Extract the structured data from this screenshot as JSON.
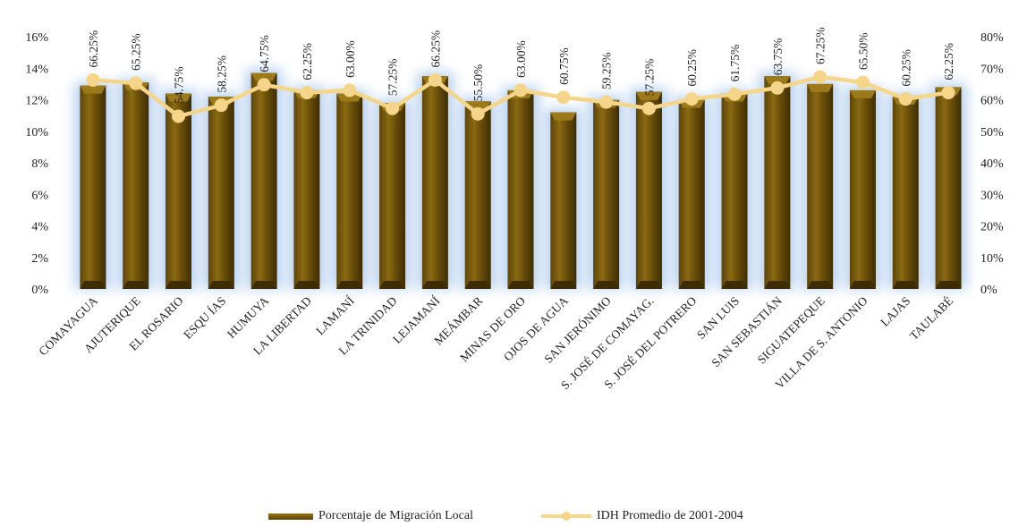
{
  "chart_data": {
    "type": "bar",
    "categories": [
      "COMAYAGUA",
      "AJUTERIQUE",
      "EL ROSARIO",
      "ESQU ÍAS",
      "HUMUYA",
      "LA LIBERTAD",
      "LAMANÍ",
      "LA TRINIDAD",
      "LEJAMANÍ",
      "MEÁMBAR",
      "MINAS DE ORO",
      "OJOS DE AGUA",
      "SAN JERÓNIMO",
      "S. JOSÉ DE COMAYAG.",
      "S. JOSÉ DEL POTRERO",
      "SAN LUIS",
      "SAN SEBASTIÁN",
      "SIGUATEPEQUE",
      "VILLA DE S. ANTONIO",
      "LAJAS",
      "TAULABÉ"
    ],
    "series": [
      {
        "name": "Porcentaje de Migración Local",
        "type": "bar",
        "axis": "left",
        "color": "#7a5c0e",
        "values": [
          12.9,
          13.1,
          12.4,
          12.2,
          13.7,
          12.6,
          12.4,
          11.8,
          13.5,
          11.9,
          12.6,
          11.2,
          12.0,
          12.5,
          12.0,
          12.4,
          13.5,
          13.0,
          12.6,
          12.2,
          12.8
        ]
      },
      {
        "name": "IDH Promedio de 2001-2004",
        "type": "line",
        "axis": "right",
        "color": "#f5d58a",
        "values": [
          66.25,
          65.25,
          54.75,
          58.25,
          64.75,
          62.25,
          63.0,
          57.25,
          66.25,
          55.5,
          63.0,
          60.75,
          59.25,
          57.25,
          60.25,
          61.75,
          63.75,
          67.25,
          65.5,
          60.25,
          62.25
        ],
        "labels": [
          "66.25%",
          "65.25%",
          "54.75%",
          "58.25%",
          "64.75%",
          "62.25%",
          "63.00%",
          "57.25%",
          "66.25%",
          "55.50%",
          "63.00%",
          "60.75%",
          "59.25%",
          "57.25%",
          "60.25%",
          "61.75%",
          "63.75%",
          "67.25%",
          "65.50%",
          "60.25%",
          "62.25%"
        ]
      }
    ],
    "y_left": {
      "min": 0,
      "max": 16,
      "step": 2,
      "tick_labels": [
        "0%",
        "2%",
        "4%",
        "6%",
        "8%",
        "10%",
        "12%",
        "14%",
        "16%"
      ]
    },
    "y_right": {
      "min": 0,
      "max": 80,
      "step": 10,
      "tick_labels": [
        "0%",
        "10%",
        "20%",
        "30%",
        "40%",
        "50%",
        "60%",
        "70%",
        "80%"
      ]
    },
    "title": "",
    "xlabel": "",
    "ylabel": "",
    "grid": false,
    "legend": "bottom"
  },
  "legend": {
    "items": [
      "Porcentaje de Migración Local",
      "IDH Promedio de 2001-2004"
    ]
  }
}
